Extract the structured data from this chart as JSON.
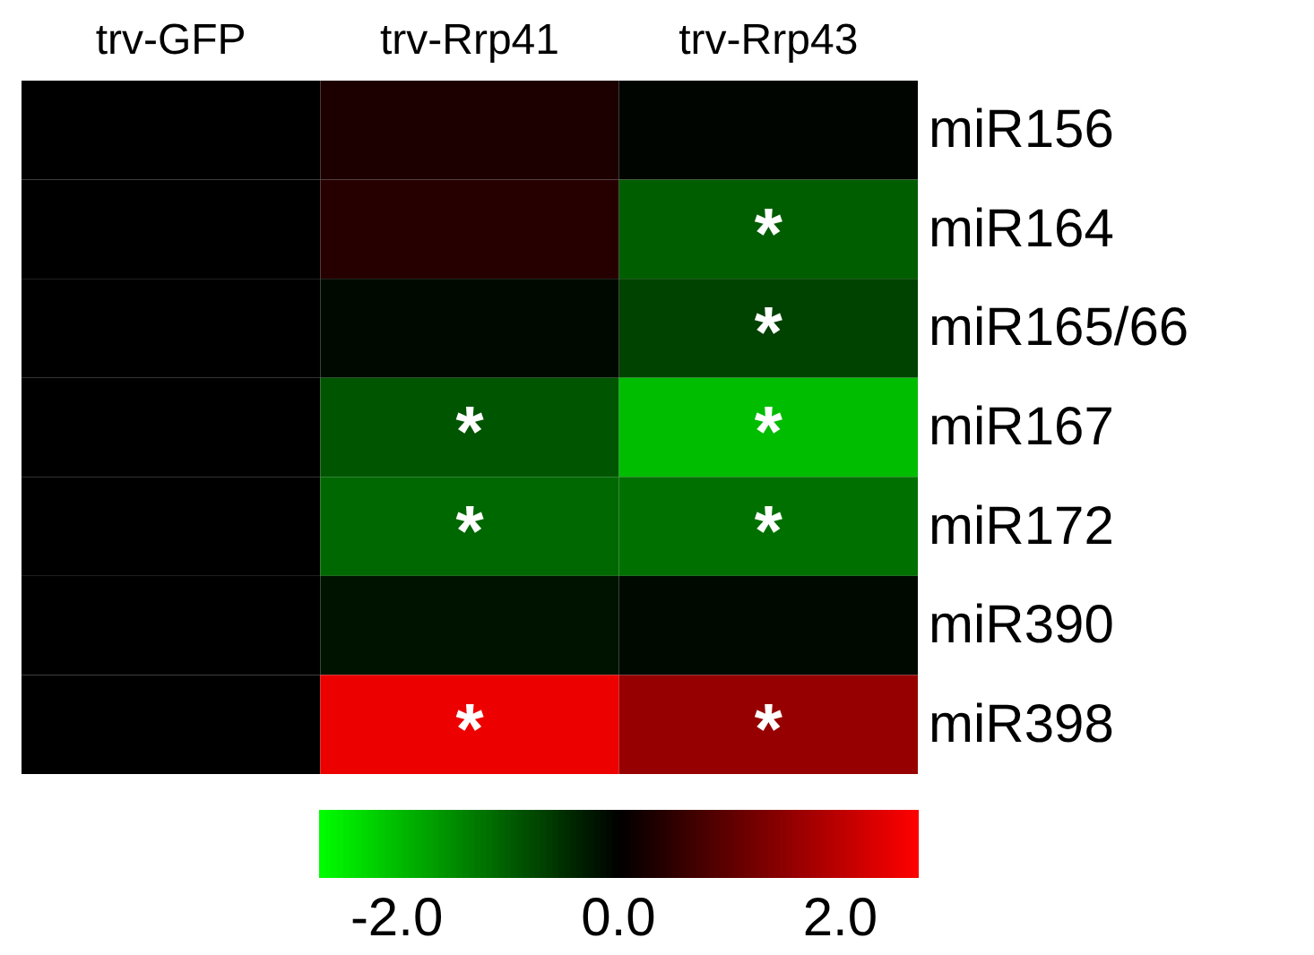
{
  "chart_data": {
    "type": "heatmap",
    "categories": [
      "trv-GFP",
      "trv-Rrp41",
      "trv-Rrp43"
    ],
    "y_categories": [
      "miR156",
      "miR164",
      "miR165/66",
      "miR167",
      "miR172",
      "miR390",
      "miR398"
    ],
    "cells": [
      [
        0,
        0.3,
        -0.05
      ],
      [
        0,
        0.4,
        -1.0
      ],
      [
        0,
        -0.1,
        -0.7
      ],
      [
        0,
        -0.9,
        -2.0
      ],
      [
        0,
        -1.1,
        -1.2
      ],
      [
        0,
        -0.2,
        -0.1
      ],
      [
        0,
        2.5,
        1.6
      ]
    ],
    "cell_labels": [
      [
        null,
        null,
        null
      ],
      [
        null,
        null,
        "*"
      ],
      [
        null,
        null,
        "*"
      ],
      [
        null,
        "*",
        "*"
      ],
      [
        null,
        "*",
        "*"
      ],
      [
        null,
        null,
        null
      ],
      [
        null,
        "*",
        "*"
      ]
    ],
    "clim": [
      -2.7,
      2.7
    ],
    "cticks": [
      {
        "value": -2,
        "label": "-2.0"
      },
      {
        "value": 0,
        "label": "0.0"
      },
      {
        "value": 2,
        "label": "2.0"
      }
    ]
  }
}
